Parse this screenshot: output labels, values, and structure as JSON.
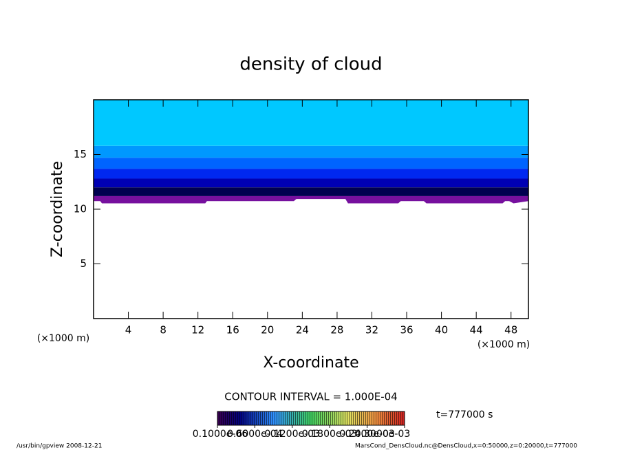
{
  "chart_data": {
    "type": "contour",
    "title": "density of cloud",
    "x_label": "X-coordinate",
    "y_label": "Z-coordinate",
    "x_unit": "(×1000 m)",
    "y_unit": "(×1000 m)",
    "xlim": [
      0,
      50
    ],
    "ylim": [
      0,
      20
    ],
    "xticks": [
      4,
      8,
      12,
      16,
      20,
      24,
      28,
      32,
      36,
      40,
      44,
      48
    ],
    "yticks": [
      5,
      10,
      15
    ],
    "base": {
      "x": [
        0,
        0.8,
        1,
        1.5,
        2,
        12.8,
        13,
        23,
        23.3,
        29,
        29.3,
        35,
        35.3,
        38,
        38.3,
        47,
        47.3,
        47.8,
        48.3,
        50
      ],
      "z": [
        10.8,
        10.8,
        10.6,
        10.6,
        10.6,
        10.6,
        10.8,
        10.8,
        11.0,
        11.0,
        10.6,
        10.6,
        10.8,
        10.8,
        10.6,
        10.6,
        10.8,
        10.8,
        10.6,
        10.8
      ]
    },
    "bands": [
      {
        "color": "#76109e",
        "top": 11.2
      },
      {
        "color": "#000050",
        "top": 12.0
      },
      {
        "color": "#0000b4",
        "top": 12.8
      },
      {
        "color": "#0028f0",
        "top": 13.7
      },
      {
        "color": "#0064ff",
        "top": 14.7
      },
      {
        "color": "#0098ff",
        "top": 15.8
      },
      {
        "color": "#00c8ff",
        "top": 20
      }
    ],
    "contour_interval": "CONTOUR INTERVAL = 1.000E-04",
    "colorbar_ticks": [
      {
        "value": 1e-07,
        "label": "0.1000e-06"
      },
      {
        "value": 6e-05,
        "label": "0.6000e-04"
      },
      {
        "value": 0.00012,
        "label": "0.1200e-03"
      },
      {
        "value": 0.00018,
        "label": "0.1800e-03"
      },
      {
        "value": 0.00024,
        "label": "0.2400e-03"
      },
      {
        "value": 0.0003,
        "label": "0.3000e-03"
      }
    ],
    "time": "t=777000 s",
    "footer_left": "/usr/bin/gpview   2008-12-21",
    "footer_right": "MarsCond_DensCloud.nc@DensCloud,x=0:50000,z=0:20000,t=777000"
  }
}
